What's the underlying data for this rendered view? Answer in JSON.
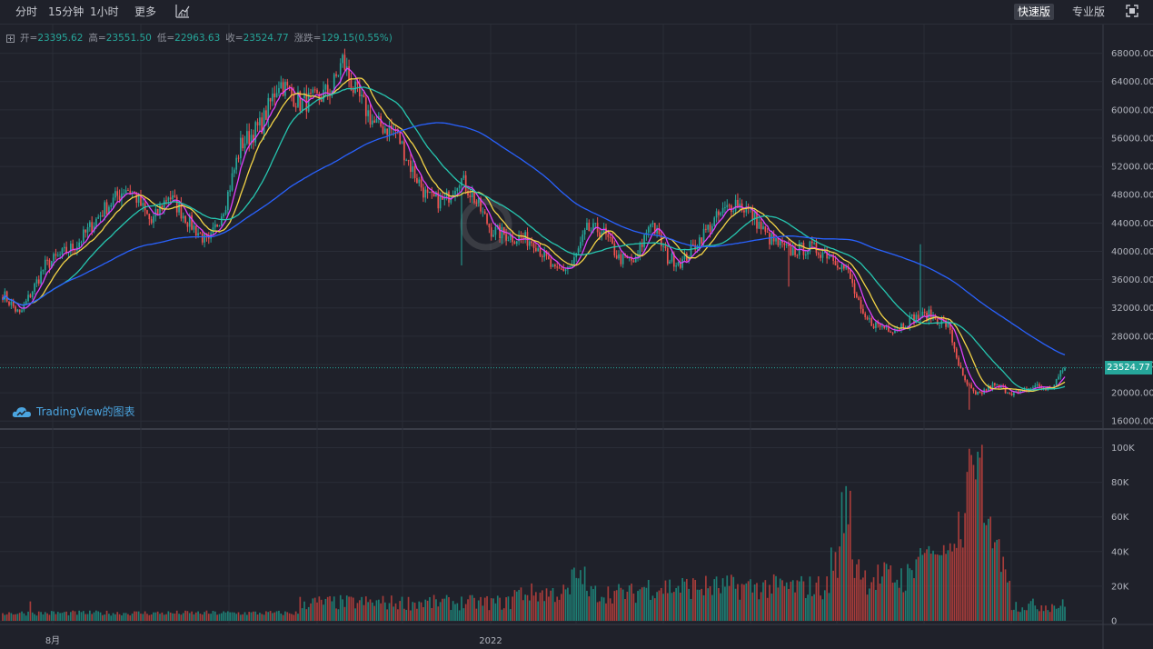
{
  "toolbar": {
    "intervals": [
      "分时",
      "15分钟",
      "1小时",
      "更多"
    ],
    "modes": [
      "快速版",
      "专业版"
    ],
    "active_mode": "快速版"
  },
  "ohlc": {
    "open_label": "开=",
    "open": "23395.62",
    "high_label": "高=",
    "high": "23551.50",
    "low_label": "低=",
    "low": "22963.63",
    "close_label": "收=",
    "close": "23524.77",
    "change_label": "涨跌=",
    "change": "129.15(0.55%)"
  },
  "watermark": "TradingView的图表",
  "last_price_tag": "23524.77",
  "colors": {
    "up": "#26a69a",
    "down": "#ef5350",
    "ma_fast": "#e040fb",
    "ma_mid": "#f5d547",
    "ma_slow": "#26c6b0",
    "ma_long": "#2962ff"
  },
  "chart_data": {
    "type": "candlestick",
    "interval": "daily",
    "x_tick_labels": [
      "8月",
      "2022"
    ],
    "price_axis": {
      "ticks": [
        16000,
        20000,
        24000,
        28000,
        32000,
        36000,
        40000,
        44000,
        48000,
        52000,
        56000,
        60000,
        64000,
        68000
      ],
      "tick_labels": [
        "16000.00",
        "20000.00",
        "24000.00",
        "28000.00",
        "32000.00",
        "36000.00",
        "40000.00",
        "44000.00",
        "48000.00",
        "52000.00",
        "56000.00",
        "60000.00",
        "64000.00",
        "68000.00"
      ],
      "range": [
        15000,
        70000
      ]
    },
    "volume_axis": {
      "ticks": [
        0,
        20000,
        40000,
        60000,
        80000,
        100000
      ],
      "tick_labels": [
        "0",
        "20K",
        "40K",
        "60K",
        "80K",
        "100K"
      ],
      "range": [
        0,
        105000
      ]
    },
    "close_path_keypoints": [
      [
        0,
        34000
      ],
      [
        8,
        31000
      ],
      [
        20,
        38000
      ],
      [
        35,
        41000
      ],
      [
        48,
        46000
      ],
      [
        58,
        49000
      ],
      [
        62,
        48000
      ],
      [
        70,
        44000
      ],
      [
        78,
        48000
      ],
      [
        88,
        44000
      ],
      [
        97,
        41000
      ],
      [
        105,
        47000
      ],
      [
        112,
        55000
      ],
      [
        122,
        58000
      ],
      [
        130,
        64000
      ],
      [
        140,
        61000
      ],
      [
        148,
        61500
      ],
      [
        155,
        63000
      ],
      [
        160,
        67000
      ],
      [
        165,
        63000
      ],
      [
        175,
        58000
      ],
      [
        185,
        57000
      ],
      [
        192,
        52000
      ],
      [
        200,
        47500
      ],
      [
        208,
        47000
      ],
      [
        215,
        50500
      ],
      [
        222,
        47500
      ],
      [
        230,
        43000
      ],
      [
        240,
        42000
      ],
      [
        250,
        41500
      ],
      [
        260,
        37000
      ],
      [
        268,
        38000
      ],
      [
        275,
        43000
      ],
      [
        282,
        43000
      ],
      [
        290,
        39000
      ],
      [
        298,
        38500
      ],
      [
        305,
        44500
      ],
      [
        313,
        39000
      ],
      [
        320,
        38500
      ],
      [
        330,
        42500
      ],
      [
        337,
        45000
      ],
      [
        345,
        47000
      ],
      [
        352,
        45500
      ],
      [
        360,
        42000
      ],
      [
        370,
        40000
      ],
      [
        380,
        40500
      ],
      [
        390,
        39500
      ],
      [
        398,
        37000
      ],
      [
        405,
        30500
      ],
      [
        412,
        29500
      ],
      [
        420,
        29000
      ],
      [
        428,
        30500
      ],
      [
        436,
        31000
      ],
      [
        445,
        29500
      ],
      [
        452,
        22000
      ],
      [
        458,
        19500
      ],
      [
        466,
        21000
      ],
      [
        478,
        19800
      ],
      [
        486,
        21000
      ],
      [
        493,
        20500
      ],
      [
        500,
        23500
      ]
    ],
    "moving_averages": [
      {
        "period": 7,
        "color": "#e040fb"
      },
      {
        "period": 14,
        "color": "#f5d547"
      },
      {
        "period": 30,
        "color": "#26c6b0"
      },
      {
        "period": 100,
        "color": "#2962ff"
      }
    ],
    "last_price": 23524.77
  }
}
